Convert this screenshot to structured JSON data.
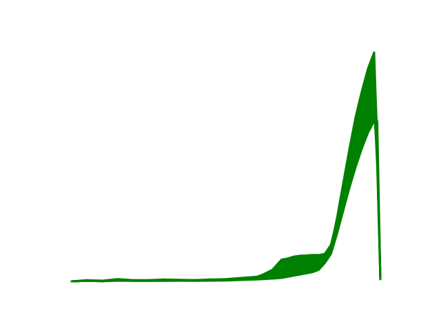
{
  "chart_data": {
    "type": "line",
    "title": "",
    "xlabel": "",
    "ylabel": "",
    "axes_visible": false,
    "grid": false,
    "legend": "none",
    "color": "#008000",
    "x": [
      0,
      0.05,
      0.1,
      0.15,
      0.2,
      0.25,
      0.3,
      0.35,
      0.4,
      0.45,
      0.5,
      0.55,
      0.6,
      0.62,
      0.65,
      0.68,
      0.7,
      0.72,
      0.74,
      0.76,
      0.78,
      0.8,
      0.82,
      0.84,
      0.86,
      0.88,
      0.9,
      0.92,
      0.94,
      0.96,
      0.98,
      0.99,
      1.0
    ],
    "xlim": [
      0,
      1
    ],
    "ylim": [
      0,
      1
    ],
    "series": [
      {
        "values": [
          0.0,
          0.005,
          0.003,
          0.01,
          0.005,
          0.005,
          0.008,
          0.007,
          0.005,
          0.008,
          0.008,
          0.008,
          0.02,
          0.026,
          0.03,
          0.04,
          0.05,
          0.06,
          0.07,
          0.075,
          0.08,
          0.08,
          0.1,
          0.15,
          0.28,
          0.43,
          0.58,
          0.72,
          0.83,
          0.93,
          1.0,
          0.6,
          0.01
        ]
      },
      {
        "values": [
          0.0,
          0.004,
          0.002,
          0.008,
          0.004,
          0.004,
          0.007,
          0.006,
          0.005,
          0.007,
          0.01,
          0.015,
          0.02,
          0.03,
          0.05,
          0.095,
          0.1,
          0.108,
          0.112,
          0.113,
          0.115,
          0.115,
          0.12,
          0.16,
          0.27,
          0.41,
          0.55,
          0.68,
          0.79,
          0.88,
          0.95,
          0.57,
          0.01
        ]
      },
      {
        "values": [
          0.0,
          0.003,
          0.002,
          0.006,
          0.003,
          0.003,
          0.005,
          0.005,
          0.004,
          0.006,
          0.008,
          0.012,
          0.015,
          0.02,
          0.03,
          0.06,
          0.07,
          0.08,
          0.085,
          0.09,
          0.095,
          0.1,
          0.11,
          0.15,
          0.26,
          0.39,
          0.52,
          0.64,
          0.75,
          0.84,
          0.9,
          0.55,
          0.01
        ]
      },
      {
        "values": [
          0.0,
          0.003,
          0.001,
          0.005,
          0.003,
          0.003,
          0.004,
          0.004,
          0.003,
          0.005,
          0.006,
          0.01,
          0.012,
          0.015,
          0.02,
          0.04,
          0.05,
          0.06,
          0.065,
          0.07,
          0.075,
          0.08,
          0.1,
          0.14,
          0.25,
          0.37,
          0.49,
          0.6,
          0.7,
          0.79,
          0.85,
          0.52,
          0.01
        ]
      },
      {
        "values": [
          0.0,
          0.002,
          0.001,
          0.004,
          0.002,
          0.002,
          0.003,
          0.003,
          0.003,
          0.004,
          0.005,
          0.008,
          0.01,
          0.012,
          0.015,
          0.02,
          0.03,
          0.04,
          0.045,
          0.05,
          0.055,
          0.06,
          0.09,
          0.13,
          0.23,
          0.34,
          0.45,
          0.55,
          0.64,
          0.72,
          0.78,
          0.5,
          0.01
        ]
      },
      {
        "values": [
          0.0,
          0.002,
          0.001,
          0.003,
          0.002,
          0.002,
          0.002,
          0.003,
          0.002,
          0.003,
          0.004,
          0.006,
          0.008,
          0.01,
          0.012,
          0.015,
          0.02,
          0.025,
          0.03,
          0.035,
          0.04,
          0.05,
          0.08,
          0.12,
          0.21,
          0.31,
          0.41,
          0.5,
          0.58,
          0.65,
          0.7,
          0.7,
          0.01
        ]
      }
    ]
  }
}
